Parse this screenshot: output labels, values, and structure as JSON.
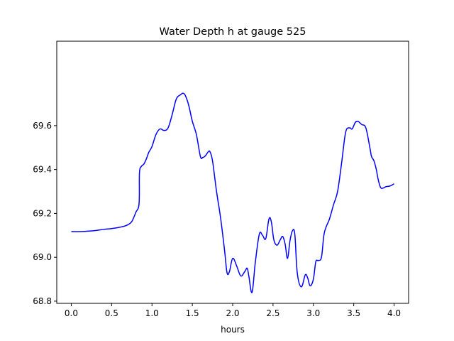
{
  "chart_data": {
    "type": "line",
    "title": "Water Depth h at gauge 525",
    "xlabel": "hours",
    "ylabel": "",
    "xlim": [
      -0.18,
      4.18
    ],
    "ylim": [
      68.79,
      69.985
    ],
    "xticks": [
      0.0,
      0.5,
      1.0,
      1.5,
      2.0,
      2.5,
      3.0,
      3.5,
      4.0
    ],
    "xtick_labels": [
      "0.0",
      "0.5",
      "1.0",
      "1.5",
      "2.0",
      "2.5",
      "3.0",
      "3.5",
      "4.0"
    ],
    "yticks": [
      68.8,
      69.0,
      69.2,
      69.4,
      69.6
    ],
    "ytick_labels": [
      "68.8",
      "69.0",
      "69.2",
      "69.4",
      "69.6"
    ],
    "grid": false,
    "series": [
      {
        "color": "#0000ff",
        "x": [
          0.0,
          0.1,
          0.2,
          0.3,
          0.4,
          0.5,
          0.6,
          0.65,
          0.7,
          0.75,
          0.8,
          0.84,
          0.845,
          0.87,
          0.9,
          0.93,
          0.96,
          1.0,
          1.05,
          1.1,
          1.15,
          1.2,
          1.25,
          1.3,
          1.35,
          1.4,
          1.45,
          1.5,
          1.55,
          1.6,
          1.63,
          1.66,
          1.7,
          1.72,
          1.75,
          1.8,
          1.85,
          1.9,
          1.93,
          1.96,
          2.0,
          2.05,
          2.1,
          2.15,
          2.18,
          2.2,
          2.24,
          2.28,
          2.33,
          2.37,
          2.41,
          2.45,
          2.48,
          2.51,
          2.55,
          2.59,
          2.62,
          2.65,
          2.68,
          2.71,
          2.74,
          2.77,
          2.8,
          2.85,
          2.9,
          2.93,
          2.96,
          3.0,
          3.03,
          3.06,
          3.1,
          3.13,
          3.16,
          3.2,
          3.25,
          3.3,
          3.35,
          3.4,
          3.45,
          3.48,
          3.52,
          3.55,
          3.57,
          3.6,
          3.65,
          3.7,
          3.72,
          3.75,
          3.78,
          3.8,
          3.83,
          3.86,
          3.9,
          3.95,
          4.0
        ],
        "values": [
          69.117,
          69.117,
          69.119,
          69.122,
          69.127,
          69.131,
          69.137,
          69.141,
          69.148,
          69.163,
          69.205,
          69.245,
          69.385,
          69.415,
          69.425,
          69.448,
          69.478,
          69.505,
          69.56,
          69.585,
          69.578,
          69.59,
          69.65,
          69.72,
          69.74,
          69.745,
          69.7,
          69.62,
          69.56,
          69.46,
          69.455,
          69.462,
          69.482,
          69.48,
          69.44,
          69.3,
          69.18,
          69.03,
          68.93,
          68.935,
          68.995,
          68.96,
          68.915,
          68.935,
          68.95,
          68.915,
          68.84,
          68.975,
          69.105,
          69.1,
          69.085,
          69.175,
          69.16,
          69.08,
          69.055,
          69.08,
          69.095,
          69.06,
          68.995,
          69.075,
          69.12,
          69.105,
          68.93,
          68.865,
          68.92,
          68.905,
          68.87,
          68.9,
          68.98,
          68.985,
          69.0,
          69.1,
          69.14,
          69.175,
          69.24,
          69.3,
          69.43,
          69.57,
          69.59,
          69.585,
          69.615,
          69.62,
          69.615,
          69.605,
          69.59,
          69.5,
          69.46,
          69.44,
          69.4,
          69.36,
          69.32,
          69.315,
          69.322,
          69.325,
          69.335
        ]
      }
    ]
  }
}
